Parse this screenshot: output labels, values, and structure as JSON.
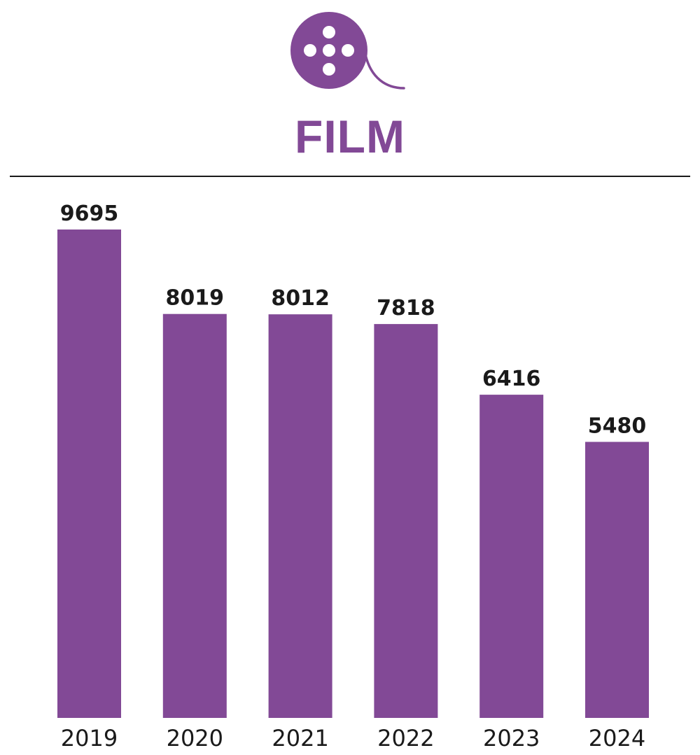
{
  "header": {
    "title": "FILM",
    "icon": "film-reel-icon"
  },
  "colors": {
    "accent": "#824996",
    "text": "#1a1a1a",
    "rule": "#1a1a1a"
  },
  "chart_data": {
    "type": "bar",
    "title": "FILM",
    "categories": [
      "2019",
      "2020",
      "2021",
      "2022",
      "2023",
      "2024"
    ],
    "values": [
      9695,
      8019,
      8012,
      7818,
      6416,
      5480
    ],
    "data_labels": true,
    "grid": false,
    "legend": "none"
  }
}
